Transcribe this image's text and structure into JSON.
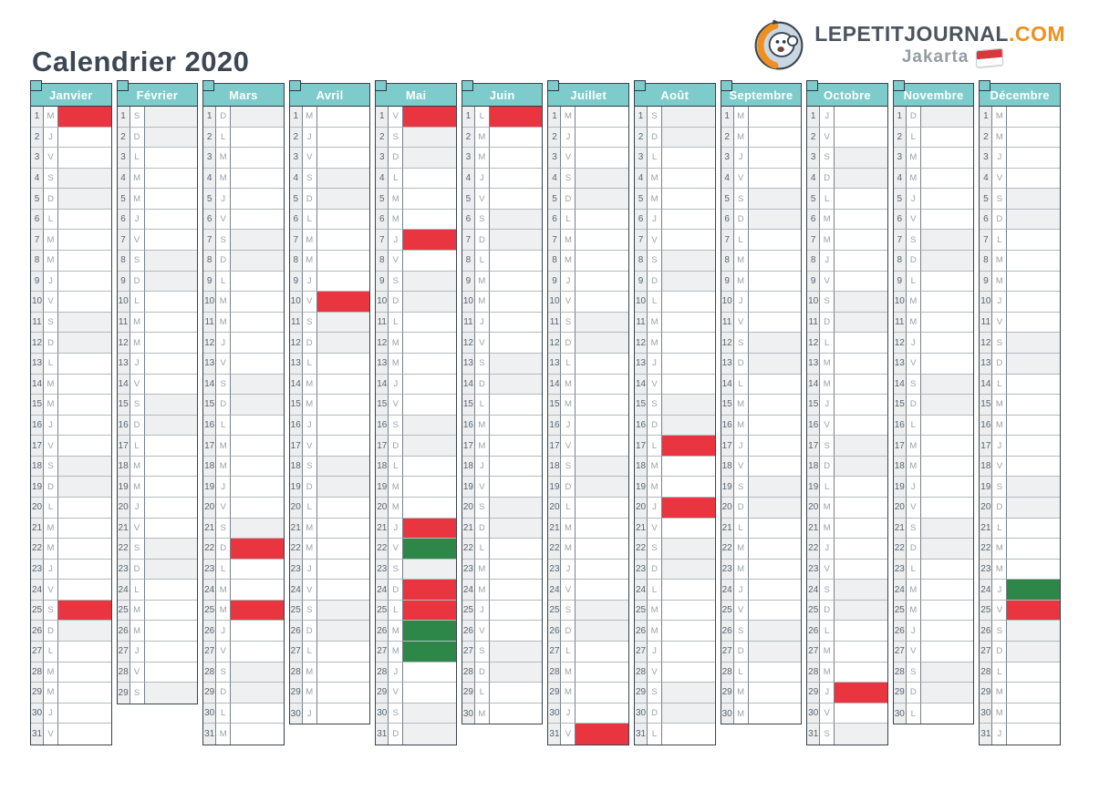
{
  "page": {
    "title": "Calendrier 2020"
  },
  "logo": {
    "brand": "LEPETITJOURNAL",
    "tld": ".COM",
    "city": "Jakarta"
  },
  "colors": {
    "header_teal": "#7ecbcb",
    "holiday_red": "#e8353f",
    "leave_green": "#2d8749",
    "weekend_gray": "#eef0f1",
    "flag_red": "#d6383c",
    "brand_orange": "#f0901c"
  },
  "calendar": {
    "year": "2020",
    "weekend_letters": "SD",
    "months": [
      {
        "name": "Janvier",
        "letters": "MJVSDLMMJVSDLMMJVSDLMMJVSDLMMJV",
        "red": [
          1,
          25
        ],
        "green": []
      },
      {
        "name": "Février",
        "letters": "SDLMMJVSDLMMJVSDLMMJVSDLMMJVS",
        "red": [],
        "green": []
      },
      {
        "name": "Mars",
        "letters": "DLMMJVSDLMMJVSDLMMJVSDLMMJVSDLM",
        "red": [
          22,
          25
        ],
        "green": []
      },
      {
        "name": "Avril",
        "letters": "MJVSDLMMJVSDLMMJVSDLMMJVSDLMMJ",
        "red": [
          10
        ],
        "green": []
      },
      {
        "name": "Mai",
        "letters": "VSDLMMJVSDLMMJVSDLMMJVSDLMMJVSD",
        "red": [
          1,
          7,
          21,
          24,
          25
        ],
        "green": [
          22,
          26,
          27
        ]
      },
      {
        "name": "Juin",
        "letters": "LMMJVSDLMMJVSDLMMJVSDLMMJVSDLM",
        "red": [
          1
        ],
        "green": []
      },
      {
        "name": "Juillet",
        "letters": "MJVSDLMMJVSDLMMJVSDLMMJVSDLMMJV",
        "red": [
          31
        ],
        "green": []
      },
      {
        "name": "Août",
        "letters": "SDLMMJVSDLMMJVSDLMMJVSDLMMJVSDL",
        "red": [
          17,
          20
        ],
        "green": []
      },
      {
        "name": "Septembre",
        "letters": "MMJVSDLMMJVSDLMMJVSDLMMJVSDLMM",
        "red": [],
        "green": []
      },
      {
        "name": "Octobre",
        "letters": "JVSDLMMJVSDLMMJVSDLMMJVSDLMMJVS",
        "red": [
          29
        ],
        "green": []
      },
      {
        "name": "Novembre",
        "letters": "DLMMJVSDLMMJVSDLMMJVSDLMMJVSDL",
        "red": [],
        "green": []
      },
      {
        "name": "Décembre",
        "letters": "MMJVSDLMMJVSDLMMJVSDLMMJVSDLMMJ",
        "red": [
          25
        ],
        "green": [
          24
        ]
      }
    ]
  }
}
